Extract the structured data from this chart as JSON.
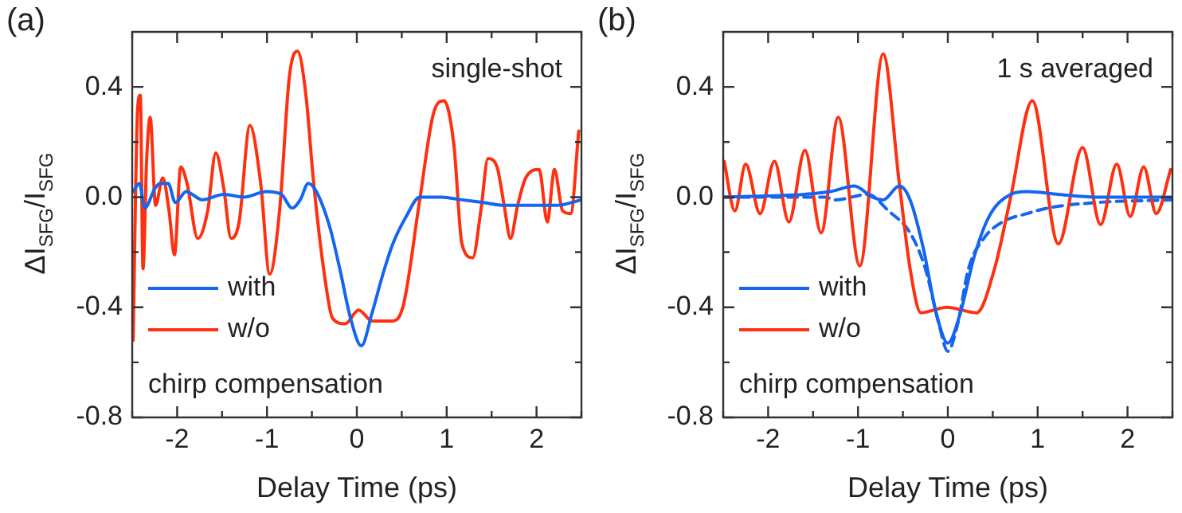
{
  "chart_data": [
    {
      "type": "line",
      "title": "(a)",
      "xlabel": "Delay Time (ps)",
      "ylabel": "ΔI$_{SFG}$/I$_{SFG}$",
      "annotations": [
        "single-shot",
        "chirp compensation"
      ],
      "legend": "bottom left",
      "marker": "none",
      "xlim": [
        -2.5,
        2.5
      ],
      "ylim": [
        -0.8,
        0.6
      ],
      "xticks": [
        {
          "value": -2.5,
          "label": null
        },
        -2,
        {
          "value": -1.5,
          "label": null
        },
        -1,
        {
          "value": -0.5,
          "label": null
        },
        0,
        {
          "value": 0.5,
          "label": null
        },
        1,
        {
          "value": 1.5,
          "label": null
        },
        2,
        {
          "value": 2.5,
          "label": null
        }
      ],
      "yticks": [
        -0.8,
        {
          "value": -0.6,
          "label": null
        },
        -0.4,
        {
          "value": -0.2,
          "label": null
        },
        {
          "value": 0,
          "label": "0.0"
        },
        {
          "value": 0.2,
          "label": null
        },
        0.4
      ],
      "series": [
        {
          "name": "with",
          "color": "#1466f0",
          "x": [
            -2.49,
            -2.42,
            -2.36,
            -2.25,
            -2.19,
            -2.1,
            -2.02,
            -1.9,
            -1.72,
            -1.48,
            -1.25,
            -1.01,
            -0.84,
            -0.72,
            -0.63,
            -0.54,
            -0.45,
            -0.3,
            -0.19,
            -0.07,
            0.05,
            0.17,
            0.29,
            0.4,
            0.55,
            0.7,
            0.94,
            1.17,
            1.41,
            1.64,
            1.94,
            2.23,
            2.5
          ],
          "values": [
            0.02,
            0.05,
            -0.04,
            0.03,
            0.05,
            0.05,
            -0.02,
            0.02,
            -0.01,
            0.01,
            0,
            0.02,
            0.01,
            -0.04,
            -0.01,
            0.05,
            0.02,
            -0.11,
            -0.26,
            -0.44,
            -0.54,
            -0.42,
            -0.28,
            -0.17,
            -0.07,
            0,
            0,
            -0.01,
            -0.02,
            -0.03,
            -0.03,
            -0.03,
            -0.01
          ]
        },
        {
          "name": "w/o",
          "color": "#ff3010",
          "x": [
            -2.49,
            -2.44,
            -2.41,
            -2.38,
            -2.34,
            -2.3,
            -2.24,
            -2.16,
            -2.09,
            -2.03,
            -1.96,
            -1.89,
            -1.77,
            -1.66,
            -1.57,
            -1.48,
            -1.4,
            -1.31,
            -1.19,
            -1.07,
            -0.97,
            -0.86,
            -0.75,
            -0.66,
            -0.57,
            -0.48,
            -0.37,
            -0.27,
            -0.13,
            0.02,
            0.17,
            0.4,
            0.52,
            0.7,
            0.85,
            0.97,
            1.08,
            1.17,
            1.29,
            1.38,
            1.46,
            1.56,
            1.64,
            1.71,
            1.79,
            1.88,
            2.03,
            2.12,
            2.2,
            2.29,
            2.38,
            2.47
          ],
          "values": [
            -0.52,
            0.32,
            0.37,
            -0.26,
            0.13,
            0.29,
            -0.03,
            0.07,
            -0.05,
            -0.21,
            0.11,
            0.05,
            -0.15,
            -0.05,
            0.16,
            0.03,
            -0.15,
            -0.09,
            0.26,
            0.05,
            -0.28,
            -0.05,
            0.44,
            0.53,
            0.38,
            0.05,
            -0.26,
            -0.44,
            -0.46,
            -0.41,
            -0.45,
            -0.45,
            -0.39,
            -0.01,
            0.3,
            0.35,
            0.19,
            -0.17,
            -0.22,
            -0.05,
            0.14,
            0.11,
            -0.03,
            -0.15,
            -0.03,
            0.07,
            0.1,
            -0.09,
            0.1,
            -0.05,
            -0.06,
            0.24
          ]
        }
      ]
    },
    {
      "type": "line",
      "title": "(b)",
      "xlabel": "Delay Time (ps)",
      "ylabel": "ΔI$_{SFG}$/I$_{SFG}$",
      "annotations": [
        "1 s averaged",
        "chirp compensation"
      ],
      "legend": "bottom left",
      "marker": "none",
      "xlim": [
        -2.5,
        2.5
      ],
      "ylim": [
        -0.8,
        0.6
      ],
      "xticks": [
        {
          "value": -2.5,
          "label": null
        },
        -2,
        {
          "value": -1.5,
          "label": null
        },
        -1,
        {
          "value": -0.5,
          "label": null
        },
        0,
        {
          "value": 0.5,
          "label": null
        },
        1,
        {
          "value": 1.5,
          "label": null
        },
        2,
        {
          "value": 2.5,
          "label": null
        }
      ],
      "yticks": [
        -0.8,
        {
          "value": -0.6,
          "label": null
        },
        -0.4,
        {
          "value": -0.2,
          "label": null
        },
        {
          "value": 0,
          "label": "0.0"
        },
        {
          "value": 0.2,
          "label": null
        },
        0.4
      ],
      "series": [
        {
          "name": "with",
          "color": "#1466f0",
          "x": [
            -2.49,
            -1.6,
            -1.31,
            -1.04,
            -0.84,
            -0.72,
            -0.54,
            -0.42,
            -0.27,
            -0.13,
            0.0,
            0.14,
            0.29,
            0.46,
            0.7,
            0.88,
            1.23,
            1.64,
            2.49
          ],
          "values": [
            0,
            0.01,
            0.02,
            0.04,
            0,
            -0.01,
            0.04,
            -0.01,
            -0.19,
            -0.42,
            -0.53,
            -0.42,
            -0.22,
            -0.07,
            0.01,
            0.02,
            0.01,
            0,
            0
          ]
        },
        {
          "name": "w/o",
          "color": "#ff3010",
          "x": [
            -2.49,
            -2.37,
            -2.25,
            -2.09,
            -1.93,
            -1.77,
            -1.59,
            -1.41,
            -1.22,
            -0.98,
            -0.72,
            -0.54,
            -0.42,
            -0.3,
            -0.01,
            0.32,
            0.52,
            0.7,
            0.94,
            1.23,
            1.5,
            1.7,
            1.88,
            2.03,
            2.18,
            2.32,
            2.48
          ],
          "values": [
            0.13,
            -0.05,
            0.12,
            -0.06,
            0.13,
            -0.09,
            0.17,
            -0.13,
            0.29,
            -0.25,
            0.52,
            0.05,
            -0.26,
            -0.42,
            -0.4,
            -0.42,
            -0.26,
            0,
            0.35,
            -0.17,
            0.18,
            -0.1,
            0.12,
            -0.07,
            0.11,
            -0.06,
            0.1
          ]
        },
        {
          "line_style": "dashed",
          "color": "#1466f0",
          "x": [
            -2.49,
            -1.37,
            -1.25,
            -0.89,
            -0.66,
            -0.42,
            -0.25,
            -0.1,
            0,
            0.11,
            0.23,
            0.4,
            0.61,
            0.88,
            1.11,
            1.64,
            2.49
          ],
          "values": [
            0,
            0,
            -0.01,
            0.01,
            -0.05,
            -0.13,
            -0.26,
            -0.46,
            -0.56,
            -0.46,
            -0.26,
            -0.15,
            -0.09,
            -0.06,
            -0.04,
            -0.02,
            -0.01
          ]
        }
      ]
    }
  ]
}
